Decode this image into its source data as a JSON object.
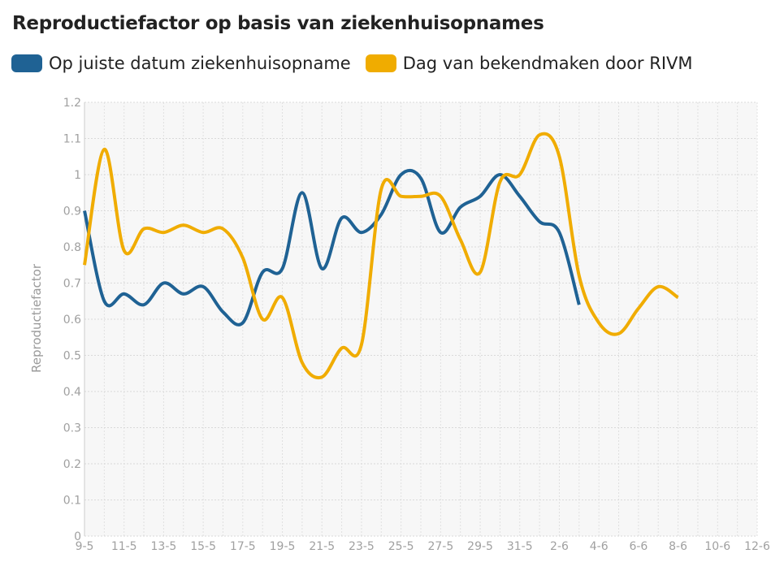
{
  "chart_data": {
    "type": "line",
    "title": "Reproductiefactor op basis van ziekenhuisopnames",
    "ylabel": "Reproductiefactor",
    "xlabel": "",
    "ylim": [
      0,
      1.2
    ],
    "yticks": [
      "0",
      "0.1",
      "0.2",
      "0.3",
      "0.4",
      "0.5",
      "0.6",
      "0.7",
      "0.8",
      "0.9",
      "1",
      "1.1",
      "1.2"
    ],
    "categories": [
      "9-5",
      "10-5",
      "11-5",
      "12-5",
      "13-5",
      "14-5",
      "15-5",
      "16-5",
      "17-5",
      "18-5",
      "19-5",
      "20-5",
      "21-5",
      "22-5",
      "23-5",
      "24-5",
      "25-5",
      "26-5",
      "27-5",
      "28-5",
      "29-5",
      "30-5",
      "31-5",
      "1-6",
      "2-6",
      "3-6",
      "4-6",
      "5-6",
      "6-6",
      "7-6",
      "8-6",
      "9-6",
      "10-6",
      "11-6",
      "12-6"
    ],
    "xtick_labels": [
      "9-5",
      "11-5",
      "13-5",
      "15-5",
      "17-5",
      "19-5",
      "21-5",
      "23-5",
      "25-5",
      "27-5",
      "29-5",
      "31-5",
      "2-6",
      "4-6",
      "6-6",
      "8-6",
      "10-6",
      "12-6"
    ],
    "grid": true,
    "legend_position": "top-left",
    "series": [
      {
        "name": "Op juiste datum ziekenhuisopname",
        "color": "#1f6294",
        "values": [
          0.9,
          0.65,
          0.67,
          0.64,
          0.7,
          0.67,
          0.69,
          0.62,
          0.59,
          0.73,
          0.74,
          0.95,
          0.74,
          0.88,
          0.84,
          0.89,
          1.0,
          0.99,
          0.84,
          0.91,
          0.94,
          1.0,
          0.94,
          0.87,
          0.84,
          0.64,
          null,
          null,
          null,
          null,
          null,
          null,
          null,
          null,
          null
        ]
      },
      {
        "name": "Dag van bekendmaken door RIVM",
        "color": "#f0ac00",
        "values": [
          0.75,
          1.07,
          0.79,
          0.85,
          0.84,
          0.86,
          0.84,
          0.85,
          0.77,
          0.6,
          0.66,
          0.48,
          0.44,
          0.52,
          0.53,
          0.96,
          0.94,
          0.94,
          0.94,
          0.82,
          0.73,
          0.98,
          1.0,
          1.11,
          1.05,
          0.72,
          0.59,
          0.56,
          0.63,
          0.69,
          0.66,
          null,
          null,
          null,
          null
        ]
      }
    ]
  }
}
